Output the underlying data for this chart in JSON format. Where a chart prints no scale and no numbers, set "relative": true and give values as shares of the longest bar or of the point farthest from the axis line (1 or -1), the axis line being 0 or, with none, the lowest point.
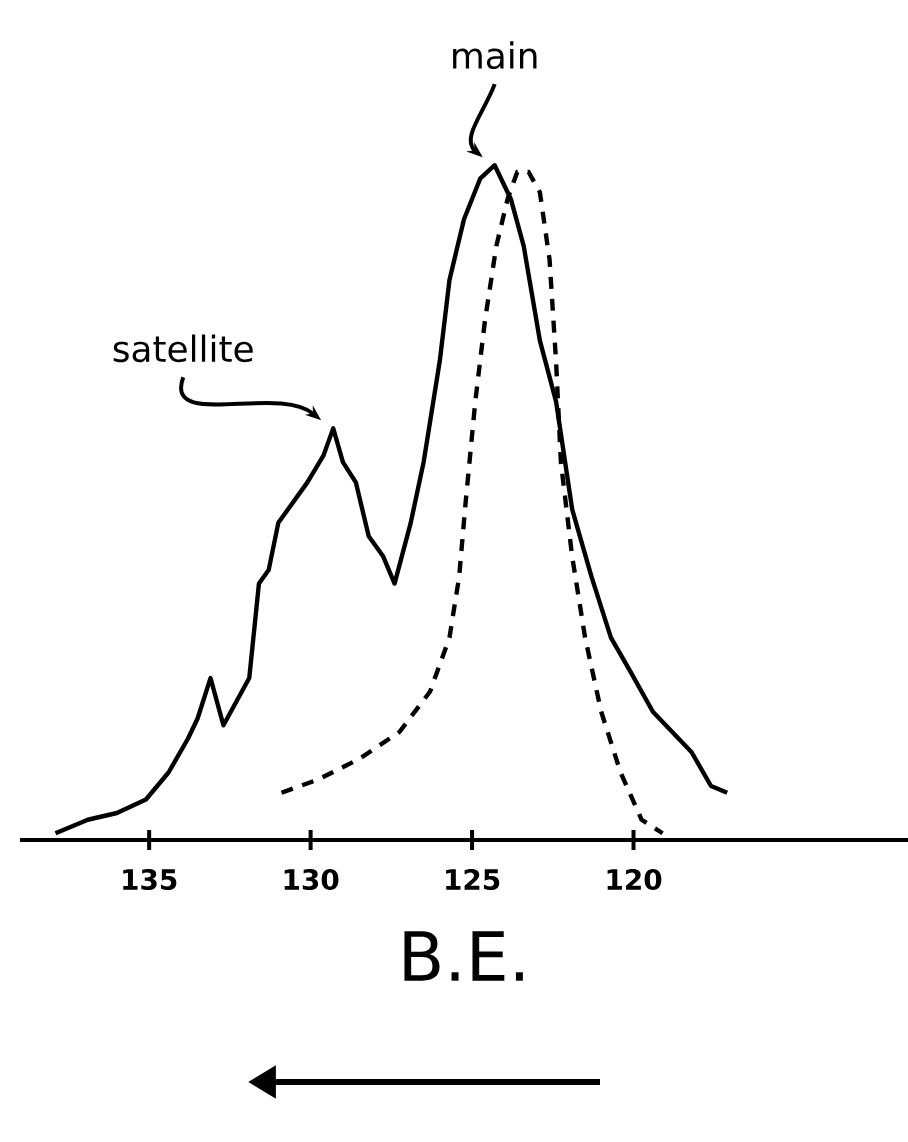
{
  "chart_data": {
    "type": "line",
    "relative": true,
    "xlabel": "B.E.",
    "xlim": [
      139,
      111.5
    ],
    "xticks": [
      135,
      130,
      125,
      120
    ],
    "annotations": [
      {
        "text": "main",
        "x": 124.3,
        "y": 1
      },
      {
        "text": "satellite",
        "x": 129.3,
        "y": 0.61
      }
    ],
    "series": [
      {
        "color": "#000000",
        "line_style": "solid",
        "x": [
          137.9,
          136.9,
          136.0,
          135.1,
          134.4,
          133.8,
          133.5,
          133.1,
          132.7,
          131.9,
          131.6,
          131.3,
          131.0,
          130.1,
          129.6,
          129.3,
          129.0,
          128.6,
          128.2,
          127.75,
          127.4,
          126.9,
          126.5,
          126.0,
          125.7,
          125.25,
          124.75,
          124.3,
          123.8,
          123.4,
          122.9,
          122.4,
          121.9,
          121.3,
          120.7,
          120.1,
          119.4,
          118.8,
          118.2,
          117.6,
          117.1
        ],
        "values": [
          0.01,
          0.03,
          0.04,
          0.06,
          0.1,
          0.15,
          0.18,
          0.24,
          0.17,
          0.24,
          0.38,
          0.4,
          0.47,
          0.53,
          0.57,
          0.61,
          0.56,
          0.53,
          0.45,
          0.42,
          0.38,
          0.47,
          0.56,
          0.71,
          0.83,
          0.92,
          0.98,
          1,
          0.95,
          0.88,
          0.74,
          0.65,
          0.49,
          0.39,
          0.3,
          0.25,
          0.19,
          0.16,
          0.13,
          0.08,
          0.07
        ]
      },
      {
        "color": "#000000",
        "line_style": "dashed",
        "x": [
          130.9,
          129.75,
          128.5,
          127.25,
          126.3,
          125.7,
          125.4,
          125.2,
          124.9,
          124.6,
          124.25,
          123.9,
          123.6,
          123.25,
          122.9,
          122.6,
          122.4,
          122.25,
          121.9,
          121.5,
          121.0,
          120.4,
          119.75,
          119.1
        ],
        "values": [
          0.07,
          0.09,
          0.12,
          0.16,
          0.22,
          0.3,
          0.39,
          0.5,
          0.65,
          0.77,
          0.88,
          0.95,
          0.99,
          0.99,
          0.96,
          0.86,
          0.71,
          0.56,
          0.42,
          0.3,
          0.19,
          0.1,
          0.03,
          0.01
        ]
      }
    ]
  }
}
